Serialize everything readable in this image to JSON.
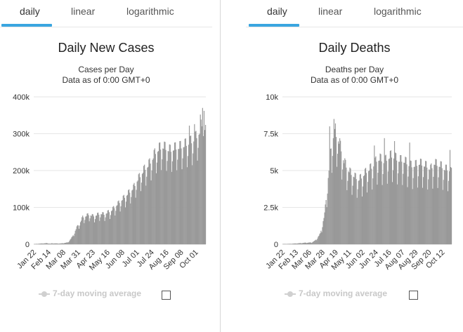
{
  "left_panel": {
    "tabs": [
      {
        "label": "daily",
        "active": true
      },
      {
        "label": "linear",
        "active": false
      },
      {
        "label": "logarithmic",
        "active": false
      }
    ],
    "legend_label": "7-day moving average",
    "checkbox_checked": false
  },
  "right_panel": {
    "tabs": [
      {
        "label": "daily",
        "active": true
      },
      {
        "label": "linear",
        "active": false
      },
      {
        "label": "logarithmic",
        "active": false
      }
    ],
    "legend_label": "7-day moving average",
    "checkbox_checked": false
  },
  "colors": {
    "bar": "#999999",
    "accent": "#3aa6e0",
    "grid": "#e6e6e6"
  },
  "chart_data": [
    {
      "type": "bar",
      "title": "Daily New Cases",
      "subtitle_lines": [
        "Cases per Day",
        "Data as of 0:00 GMT+0"
      ],
      "xlabel": "",
      "ylabel": "",
      "ylim": [
        0,
        400000
      ],
      "y_ticks": [
        0,
        100000,
        200000,
        300000,
        400000
      ],
      "y_tick_labels": [
        "0",
        "100k",
        "200k",
        "300k",
        "400k"
      ],
      "x_tick_labels": [
        "Jan 22",
        "Feb 14",
        "Mar 08",
        "Mar 31",
        "Apr 23",
        "May 16",
        "Jun 08",
        "Jul 01",
        "Jul 24",
        "Aug 16",
        "Sep 08",
        "Oct 01"
      ],
      "grid": true,
      "anchors": [
        [
          0,
          600
        ],
        [
          10,
          2000
        ],
        [
          17,
          3000
        ],
        [
          22,
          1500
        ],
        [
          24,
          2500
        ],
        [
          33,
          2000
        ],
        [
          38,
          2500
        ],
        [
          46,
          5000
        ],
        [
          52,
          20000
        ],
        [
          58,
          45000
        ],
        [
          63,
          60000
        ],
        [
          66,
          72000
        ],
        [
          70,
          75000
        ],
        [
          75,
          80000
        ],
        [
          80,
          75000
        ],
        [
          85,
          78000
        ],
        [
          90,
          82000
        ],
        [
          95,
          80000
        ],
        [
          100,
          85000
        ],
        [
          105,
          90000
        ],
        [
          110,
          100000
        ],
        [
          115,
          110000
        ],
        [
          120,
          120000
        ],
        [
          125,
          130000
        ],
        [
          130,
          140000
        ],
        [
          135,
          150000
        ],
        [
          140,
          170000
        ],
        [
          145,
          185000
        ],
        [
          150,
          200000
        ],
        [
          155,
          210000
        ],
        [
          160,
          225000
        ],
        [
          165,
          245000
        ],
        [
          170,
          255000
        ],
        [
          175,
          260000
        ],
        [
          180,
          255000
        ],
        [
          185,
          250000
        ],
        [
          190,
          255000
        ],
        [
          195,
          258000
        ],
        [
          200,
          260000
        ],
        [
          205,
          265000
        ],
        [
          210,
          270000
        ],
        [
          215,
          275000
        ],
        [
          220,
          285000
        ],
        [
          225,
          300000
        ],
        [
          228,
          320000
        ],
        [
          230,
          330000
        ],
        [
          233,
          300000
        ]
      ],
      "peaks": [
        [
          229,
          370000
        ],
        [
          231,
          362000
        ],
        [
          226,
          352000
        ],
        [
          218,
          326000
        ],
        [
          211,
          322000
        ]
      ],
      "weekly_dip": 0.78,
      "n_days": 234
    },
    {
      "type": "bar",
      "title": "Daily Deaths",
      "subtitle_lines": [
        "Deaths per Day",
        "Data as of 0:00 GMT+0"
      ],
      "xlabel": "",
      "ylabel": "",
      "ylim": [
        0,
        10000
      ],
      "y_ticks": [
        0,
        2500,
        5000,
        7500,
        10000
      ],
      "y_tick_labels": [
        "0",
        "2.5k",
        "5k",
        "7.5k",
        "10k"
      ],
      "x_tick_labels": [
        "Jan 22",
        "Feb 13",
        "Mar 06",
        "Mar 28",
        "Apr 19",
        "May 11",
        "Jun 02",
        "Jun 24",
        "Jul 16",
        "Aug 07",
        "Aug 29",
        "Sep 20",
        "Oct 12"
      ],
      "grid": true,
      "anchors": [
        [
          0,
          20
        ],
        [
          10,
          30
        ],
        [
          20,
          60
        ],
        [
          30,
          100
        ],
        [
          40,
          120
        ],
        [
          45,
          250
        ],
        [
          52,
          700
        ],
        [
          58,
          2000
        ],
        [
          63,
          4500
        ],
        [
          67,
          6500
        ],
        [
          70,
          7200
        ],
        [
          75,
          7300
        ],
        [
          80,
          6500
        ],
        [
          85,
          5500
        ],
        [
          90,
          5000
        ],
        [
          95,
          4700
        ],
        [
          100,
          4500
        ],
        [
          105,
          4300
        ],
        [
          110,
          4500
        ],
        [
          115,
          4800
        ],
        [
          120,
          5000
        ],
        [
          125,
          5200
        ],
        [
          130,
          5600
        ],
        [
          135,
          5700
        ],
        [
          140,
          5500
        ],
        [
          145,
          5700
        ],
        [
          150,
          5900
        ],
        [
          155,
          5800
        ],
        [
          160,
          5600
        ],
        [
          165,
          5600
        ],
        [
          170,
          5500
        ],
        [
          175,
          5300
        ],
        [
          180,
          5200
        ],
        [
          185,
          5300
        ],
        [
          190,
          5400
        ],
        [
          195,
          5300
        ],
        [
          200,
          5200
        ],
        [
          205,
          5000
        ],
        [
          210,
          5400
        ],
        [
          215,
          5300
        ],
        [
          220,
          5200
        ],
        [
          225,
          5000
        ],
        [
          230,
          5000
        ],
        [
          234,
          4800
        ]
      ],
      "peaks": [
        [
          71,
          8500
        ],
        [
          73,
          8200
        ],
        [
          65,
          8000
        ],
        [
          127,
          6700
        ],
        [
          141,
          7200
        ],
        [
          155,
          7000
        ],
        [
          176,
          6900
        ],
        [
          232,
          6400
        ]
      ],
      "weekly_dip": 0.72,
      "n_days": 235
    }
  ]
}
